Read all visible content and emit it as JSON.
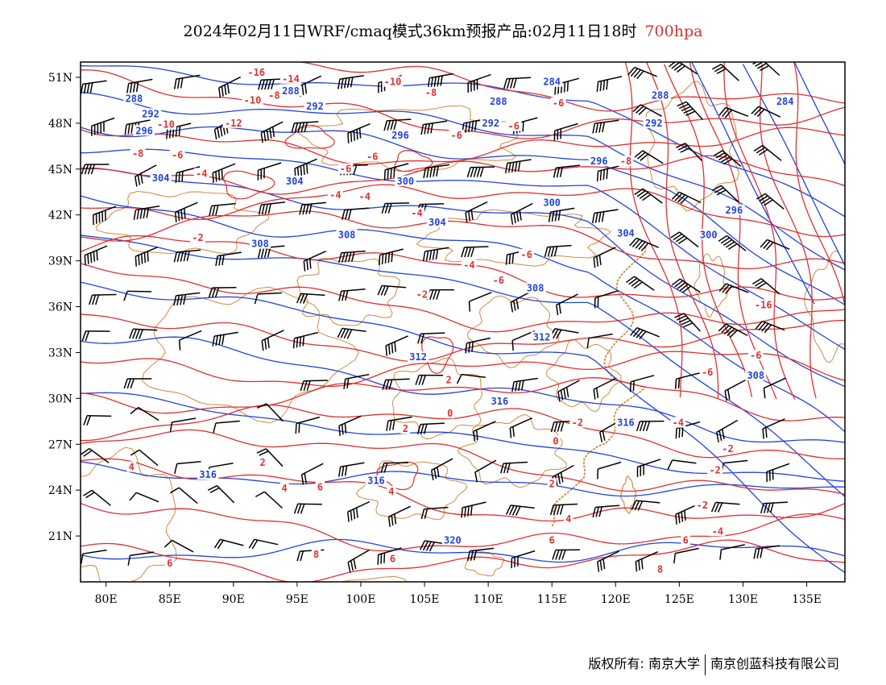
{
  "title": {
    "main": "2024年02月11日WRF/cmaq模式36km预报产品:02月11日18时",
    "level": "700hpa"
  },
  "axes": {
    "x_ticks": [
      "80E",
      "85E",
      "90E",
      "95E",
      "100E",
      "105E",
      "110E",
      "115E",
      "120E",
      "125E",
      "130E",
      "135E"
    ],
    "y_ticks": [
      "51N",
      "48N",
      "45N",
      "42N",
      "39N",
      "36N",
      "33N",
      "30N",
      "27N",
      "24N",
      "21N"
    ]
  },
  "map_data": {
    "extent": {
      "lon": [
        78,
        138
      ],
      "lat": [
        18,
        52
      ]
    },
    "height_contours_label_values": [
      "284",
      "288",
      "292",
      "296",
      "300",
      "304",
      "308",
      "312",
      "316",
      "320"
    ],
    "temperature_contour_label_values": [
      "-16",
      "-14",
      "-12",
      "-10",
      "-8",
      "-6",
      "-4",
      "-2",
      "0",
      "2",
      "4",
      "6",
      "8"
    ],
    "colors": {
      "temperature": "#e03030",
      "height": "#2244dd",
      "borders": "#d08a40",
      "wind": "#000000"
    }
  },
  "contour_labels": {
    "blue": [
      {
        "text": "284",
        "lon": 115.0,
        "lat": 50.6
      },
      {
        "text": "288",
        "lon": 82.2,
        "lat": 49.5
      },
      {
        "text": "288",
        "lon": 94.5,
        "lat": 50.0
      },
      {
        "text": "288",
        "lon": 110.8,
        "lat": 49.3
      },
      {
        "text": "288",
        "lon": 123.5,
        "lat": 49.7
      },
      {
        "text": "284",
        "lon": 133.3,
        "lat": 49.3
      },
      {
        "text": "292",
        "lon": 83.5,
        "lat": 48.5
      },
      {
        "text": "292",
        "lon": 96.4,
        "lat": 49.0
      },
      {
        "text": "292",
        "lon": 110.2,
        "lat": 47.9
      },
      {
        "text": "292",
        "lon": 123.0,
        "lat": 47.9
      },
      {
        "text": "296",
        "lon": 83.0,
        "lat": 47.4
      },
      {
        "text": "296",
        "lon": 103.1,
        "lat": 47.1
      },
      {
        "text": "296",
        "lon": 118.7,
        "lat": 45.4
      },
      {
        "text": "296",
        "lon": 129.3,
        "lat": 42.2
      },
      {
        "text": "304",
        "lon": 84.3,
        "lat": 44.3
      },
      {
        "text": "304",
        "lon": 94.8,
        "lat": 44.1
      },
      {
        "text": "300",
        "lon": 103.5,
        "lat": 44.1
      },
      {
        "text": "300",
        "lon": 115.0,
        "lat": 42.7
      },
      {
        "text": "300",
        "lon": 127.3,
        "lat": 40.6
      },
      {
        "text": "304",
        "lon": 106.0,
        "lat": 41.4
      },
      {
        "text": "304",
        "lon": 120.8,
        "lat": 40.7
      },
      {
        "text": "308",
        "lon": 92.1,
        "lat": 40.0
      },
      {
        "text": "308",
        "lon": 98.9,
        "lat": 40.6
      },
      {
        "text": "308",
        "lon": 113.7,
        "lat": 37.1
      },
      {
        "text": "312",
        "lon": 114.2,
        "lat": 33.9
      },
      {
        "text": "312",
        "lon": 104.5,
        "lat": 32.6
      },
      {
        "text": "308",
        "lon": 131.0,
        "lat": 31.4
      },
      {
        "text": "316",
        "lon": 110.9,
        "lat": 29.7
      },
      {
        "text": "316",
        "lon": 120.8,
        "lat": 28.3
      },
      {
        "text": "316",
        "lon": 88.0,
        "lat": 24.9
      },
      {
        "text": "316",
        "lon": 101.2,
        "lat": 24.5
      },
      {
        "text": "320",
        "lon": 107.2,
        "lat": 20.6
      }
    ],
    "red": [
      {
        "text": "-16",
        "lon": 91.8,
        "lat": 51.2
      },
      {
        "text": "-14",
        "lon": 94.5,
        "lat": 50.8
      },
      {
        "text": "-10",
        "lon": 102.5,
        "lat": 50.6
      },
      {
        "text": "-8",
        "lon": 105.5,
        "lat": 49.9
      },
      {
        "text": "-10",
        "lon": 91.5,
        "lat": 49.4
      },
      {
        "text": "-8",
        "lon": 93.2,
        "lat": 49.7
      },
      {
        "text": "-6",
        "lon": 115.5,
        "lat": 49.2
      },
      {
        "text": "-12",
        "lon": 90.0,
        "lat": 47.9
      },
      {
        "text": "-10",
        "lon": 84.7,
        "lat": 47.8
      },
      {
        "text": "-6",
        "lon": 107.5,
        "lat": 47.1
      },
      {
        "text": "-6",
        "lon": 112.0,
        "lat": 47.7
      },
      {
        "text": "-8",
        "lon": 120.8,
        "lat": 45.4
      },
      {
        "text": "-8",
        "lon": 82.5,
        "lat": 45.9
      },
      {
        "text": "-6",
        "lon": 85.6,
        "lat": 45.8
      },
      {
        "text": "-6",
        "lon": 98.8,
        "lat": 44.9
      },
      {
        "text": "-6",
        "lon": 100.9,
        "lat": 45.7
      },
      {
        "text": "-4",
        "lon": 87.5,
        "lat": 44.6
      },
      {
        "text": "-4",
        "lon": 98.0,
        "lat": 43.2
      },
      {
        "text": "-4",
        "lon": 100.3,
        "lat": 43.1
      },
      {
        "text": "-4",
        "lon": 104.4,
        "lat": 42.0
      },
      {
        "text": "-2",
        "lon": 87.2,
        "lat": 40.4
      },
      {
        "text": "-6",
        "lon": 113.0,
        "lat": 39.3
      },
      {
        "text": "-4",
        "lon": 108.5,
        "lat": 38.6
      },
      {
        "text": "-6",
        "lon": 110.8,
        "lat": 37.6
      },
      {
        "text": "-2",
        "lon": 104.8,
        "lat": 36.7
      },
      {
        "text": "-16",
        "lon": 131.6,
        "lat": 36.0
      },
      {
        "text": "-6",
        "lon": 131.0,
        "lat": 32.7
      },
      {
        "text": "-6",
        "lon": 127.2,
        "lat": 31.6
      },
      {
        "text": "-4",
        "lon": 124.9,
        "lat": 28.3
      },
      {
        "text": "2",
        "lon": 106.9,
        "lat": 31.1
      },
      {
        "text": "0",
        "lon": 107.0,
        "lat": 28.9
      },
      {
        "text": "-2",
        "lon": 117.0,
        "lat": 28.3
      },
      {
        "text": "0",
        "lon": 115.3,
        "lat": 27.1
      },
      {
        "text": "-2",
        "lon": 128.8,
        "lat": 26.6
      },
      {
        "text": "-2",
        "lon": 127.8,
        "lat": 25.2
      },
      {
        "text": "-2",
        "lon": 126.8,
        "lat": 22.9
      },
      {
        "text": "-4",
        "lon": 128.0,
        "lat": 21.2
      },
      {
        "text": "2",
        "lon": 103.5,
        "lat": 27.9
      },
      {
        "text": "2",
        "lon": 92.3,
        "lat": 25.7
      },
      {
        "text": "4",
        "lon": 82.0,
        "lat": 25.4
      },
      {
        "text": "4",
        "lon": 94.0,
        "lat": 24.0
      },
      {
        "text": "6",
        "lon": 96.8,
        "lat": 24.1
      },
      {
        "text": "4",
        "lon": 102.4,
        "lat": 23.8
      },
      {
        "text": "2",
        "lon": 115.0,
        "lat": 24.3
      },
      {
        "text": "4",
        "lon": 116.3,
        "lat": 22.0
      },
      {
        "text": "6",
        "lon": 115.0,
        "lat": 20.6
      },
      {
        "text": "6",
        "lon": 125.5,
        "lat": 20.6
      },
      {
        "text": "8",
        "lon": 96.5,
        "lat": 19.7
      },
      {
        "text": "6",
        "lon": 102.5,
        "lat": 19.4
      },
      {
        "text": "6",
        "lon": 85.0,
        "lat": 19.1
      },
      {
        "text": "8",
        "lon": 123.5,
        "lat": 18.7
      }
    ]
  },
  "footer": {
    "copyright": "版权所有: 南京大学",
    "company": "南京创蓝科技有限公司"
  }
}
